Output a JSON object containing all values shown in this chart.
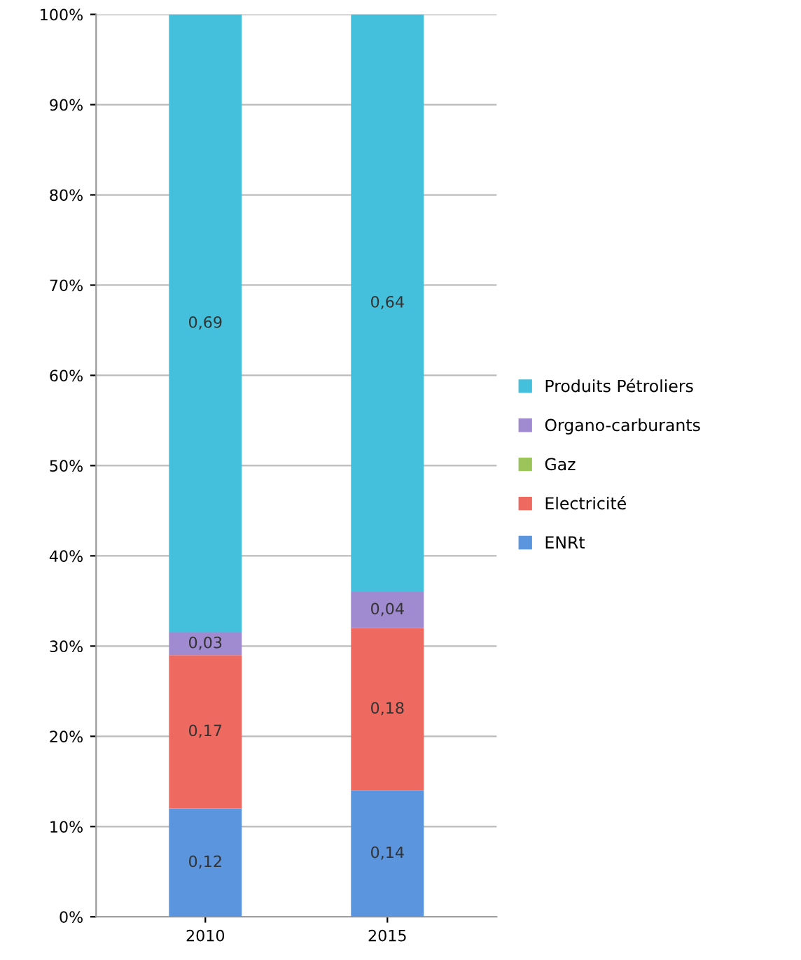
{
  "chart_data": {
    "type": "bar",
    "stacked": true,
    "categories": [
      "2010",
      "2015"
    ],
    "series": [
      {
        "name": "ENRt",
        "color": "#5b95de",
        "values": [
          0.12,
          0.14
        ],
        "value_labels": [
          "0,12",
          "0,14"
        ]
      },
      {
        "name": "Electricité",
        "color": "#ee6a60",
        "values": [
          0.17,
          0.18
        ],
        "value_labels": [
          "0,17",
          "0,18"
        ]
      },
      {
        "name": "Gaz",
        "color": "#9bc45a",
        "values": [
          0,
          0
        ],
        "value_labels": [
          null,
          null
        ]
      },
      {
        "name": "Organo-carburants",
        "color": "#a08ad0",
        "values": [
          0.025,
          0.04
        ],
        "value_labels": [
          "0,03",
          "0,04"
        ]
      },
      {
        "name": "Produits Pétroliers",
        "color": "#45c0dc",
        "values": [
          0.685,
          0.64
        ],
        "value_labels": [
          "0,69",
          "0,64"
        ]
      }
    ],
    "ylim": [
      0,
      1
    ],
    "yticks": [
      {
        "value": 0,
        "label": "0%"
      },
      {
        "value": 0.1,
        "label": "10%"
      },
      {
        "value": 0.2,
        "label": "20%"
      },
      {
        "value": 0.3,
        "label": "30%"
      },
      {
        "value": 0.4,
        "label": "40%"
      },
      {
        "value": 0.5,
        "label": "50%"
      },
      {
        "value": 0.6,
        "label": "60%"
      },
      {
        "value": 0.7,
        "label": "70%"
      },
      {
        "value": 0.8,
        "label": "80%"
      },
      {
        "value": 0.9,
        "label": "90%"
      },
      {
        "value": 1,
        "label": "100%"
      }
    ],
    "grid": "y",
    "legend": "right"
  }
}
